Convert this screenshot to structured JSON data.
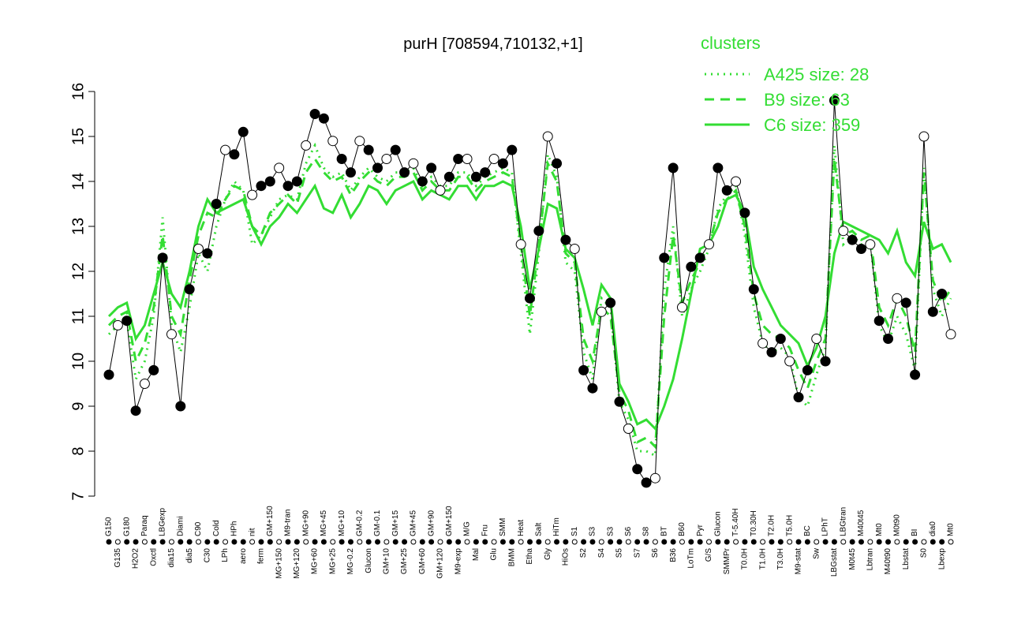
{
  "chart_data": {
    "type": "line",
    "title": "purH [708594,710132,+1]",
    "legend_title": "clusters",
    "legend": "top-right",
    "point_color": "#000000",
    "categories": [
      "G150",
      "G135",
      "G180",
      "H2O2",
      "Paraq",
      "Oxctl",
      "LBGexp",
      "dia15",
      "Diami",
      "dia5",
      "C90",
      "C30",
      "Cold",
      "LPh",
      "HPh",
      "aero",
      "nit",
      "ferm",
      "GM+150",
      "MG+150",
      "M9-tran",
      "MG+120",
      "MG+90",
      "MG+60",
      "MG+45",
      "MG+25",
      "MG+10",
      "MG-0.2",
      "GM-0.2",
      "Glucon",
      "GM-0.1",
      "GM+10",
      "GM+15",
      "GM+25",
      "GM+45",
      "GM+60",
      "GM+90",
      "GM+120",
      "GM+150",
      "M9-exp",
      "M/G",
      "Mal",
      "Fru",
      "Glu",
      "SMM",
      "BMM",
      "Heat",
      "Etha",
      "Salt",
      "Gly",
      "HiTm",
      "HiOs",
      "S1",
      "S2",
      "S3",
      "S4",
      "S3",
      "S5",
      "S6",
      "S7",
      "S8",
      "S6",
      "BT",
      "B36",
      "B60",
      "LoTm",
      "Pyr",
      "G/S",
      "Glucon",
      "SMMPr",
      "T-5.40H",
      "T0.0H",
      "T0.30H",
      "T1.0H",
      "T2.0H",
      "T3.0H",
      "T5.0H",
      "M9-stat",
      "BC",
      "Sw",
      "LPhT",
      "LBGstat",
      "LBGtran",
      "M0t45",
      "M40t45",
      "Lbtran",
      "Mt0",
      "M40t90",
      "M0t90",
      "Lbstat",
      "BI",
      "S0",
      "dia0",
      "Lbexp",
      "Mt0"
    ],
    "values": [
      9.7,
      10.8,
      10.9,
      8.9,
      9.5,
      9.8,
      12.3,
      10.6,
      9.0,
      11.6,
      12.5,
      12.4,
      13.5,
      14.7,
      14.6,
      15.1,
      13.7,
      13.9,
      14.0,
      14.3,
      13.9,
      14.0,
      14.8,
      15.5,
      15.4,
      14.9,
      14.5,
      14.2,
      14.9,
      14.7,
      14.3,
      14.5,
      14.7,
      14.2,
      14.4,
      14.0,
      14.3,
      13.8,
      14.1,
      14.5,
      14.5,
      14.1,
      14.2,
      14.5,
      14.4,
      14.7,
      12.6,
      11.4,
      12.9,
      15.0,
      14.4,
      12.7,
      12.5,
      9.8,
      9.4,
      11.1,
      11.3,
      9.1,
      8.5,
      7.6,
      7.3,
      7.4,
      12.3,
      14.3,
      11.2,
      12.1,
      12.3,
      12.6,
      14.3,
      13.8,
      14.0,
      13.3,
      11.6,
      10.4,
      10.2,
      10.5,
      10.0,
      9.2,
      9.8,
      10.5,
      10.0,
      15.8,
      12.9,
      12.7,
      12.5,
      12.6,
      10.9,
      10.5,
      11.4,
      11.3,
      9.7,
      15.0,
      11.1,
      11.5,
      10.6
    ],
    "series": [
      {
        "name": "A425 size: 28",
        "color": "#33dd33",
        "dash": "dotted",
        "values": [
          10.6,
          10.8,
          10.9,
          9.6,
          10.0,
          11.0,
          13.2,
          10.8,
          10.2,
          11.2,
          12.4,
          12.0,
          13.0,
          13.6,
          14.0,
          13.8,
          12.6,
          12.8,
          13.2,
          13.6,
          13.7,
          13.6,
          14.4,
          14.8,
          14.3,
          14.1,
          14.2,
          13.8,
          14.1,
          14.3,
          14.1,
          14.0,
          14.2,
          14.2,
          14.3,
          13.9,
          14.1,
          13.9,
          13.9,
          14.2,
          14.2,
          13.9,
          14.1,
          14.2,
          14.3,
          14.2,
          12.4,
          10.6,
          12.4,
          14.6,
          14.1,
          12.2,
          12.0,
          10.2,
          9.6,
          11.4,
          11.2,
          9.1,
          8.7,
          8.0,
          8.0,
          7.9,
          11.6,
          13.0,
          11.0,
          11.6,
          12.0,
          12.5,
          13.4,
          13.7,
          13.9,
          12.8,
          11.2,
          10.4,
          10.2,
          10.3,
          10.1,
          9.2,
          9.0,
          9.7,
          10.3,
          14.8,
          12.6,
          12.8,
          12.6,
          12.7,
          10.8,
          10.4,
          11.0,
          10.6,
          9.8,
          14.3,
          11.6,
          11.0,
          11.4
        ]
      },
      {
        "name": "B9 size: 63",
        "color": "#33dd33",
        "dash": "dashed",
        "values": [
          10.8,
          11.0,
          11.1,
          10.0,
          10.4,
          11.2,
          12.8,
          11.0,
          10.6,
          11.8,
          12.8,
          13.3,
          13.2,
          13.6,
          13.9,
          13.8,
          13.0,
          12.8,
          13.3,
          13.5,
          13.7,
          13.5,
          14.2,
          14.5,
          14.2,
          14.0,
          14.1,
          13.7,
          14.0,
          14.2,
          14.0,
          13.9,
          14.1,
          14.1,
          14.2,
          13.8,
          14.0,
          13.8,
          13.8,
          14.1,
          14.1,
          13.8,
          14.0,
          14.1,
          14.2,
          14.1,
          12.6,
          11.0,
          12.6,
          14.4,
          14.0,
          12.4,
          12.2,
          10.5,
          10.0,
          11.2,
          11.0,
          9.3,
          8.9,
          8.2,
          8.3,
          8.1,
          11.0,
          12.8,
          11.3,
          11.8,
          12.2,
          12.6,
          13.3,
          13.6,
          13.8,
          13.0,
          11.5,
          10.8,
          10.6,
          10.5,
          10.3,
          9.8,
          9.4,
          10.0,
          10.5,
          14.5,
          12.8,
          12.9,
          12.7,
          12.8,
          11.2,
          10.8,
          11.4,
          11.0,
          10.2,
          14.2,
          11.8,
          11.3,
          11.6
        ]
      },
      {
        "name": "C6 size: 359",
        "color": "#33dd33",
        "dash": "solid",
        "values": [
          11.0,
          11.2,
          11.3,
          10.5,
          10.8,
          11.5,
          12.2,
          11.5,
          11.2,
          12.0,
          13.0,
          13.6,
          13.3,
          13.4,
          13.5,
          13.6,
          13.0,
          12.6,
          13.0,
          13.2,
          13.5,
          13.3,
          13.6,
          13.9,
          13.4,
          13.3,
          13.7,
          13.2,
          13.5,
          13.9,
          13.8,
          13.5,
          13.8,
          13.9,
          14.0,
          13.6,
          13.8,
          13.7,
          13.6,
          13.9,
          13.9,
          13.6,
          13.9,
          13.9,
          14.0,
          13.9,
          13.0,
          11.6,
          12.5,
          13.5,
          13.4,
          12.5,
          12.3,
          11.6,
          10.8,
          11.7,
          11.4,
          9.5,
          9.1,
          8.6,
          8.7,
          8.5,
          9.0,
          9.6,
          10.5,
          11.5,
          12.5,
          12.6,
          13.0,
          13.6,
          13.7,
          13.3,
          12.1,
          11.6,
          11.2,
          10.8,
          10.6,
          10.4,
          9.9,
          10.3,
          11.0,
          12.4,
          13.1,
          13.0,
          12.9,
          12.8,
          12.7,
          12.4,
          12.9,
          12.2,
          11.9,
          13.1,
          12.5,
          12.6,
          12.2
        ]
      }
    ],
    "ylim": [
      7,
      16
    ],
    "yticks": [
      7,
      8,
      9,
      10,
      11,
      12,
      13,
      14,
      15,
      16
    ]
  }
}
